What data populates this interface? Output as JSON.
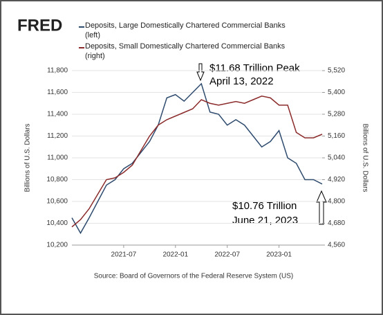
{
  "logo": "FRED",
  "chart_data": {
    "type": "line",
    "annotations": [
      "$11.68 Trillion Peak",
      "April 13, 2022",
      "$10.76 Trillion",
      "June 21, 2023"
    ],
    "ylabel": "Billions of U.S. Dollars",
    "y2label": "Billions of U.S. Dollars",
    "source": "Source: Board of Governors of the Federal Reserve System (US)",
    "x": [
      "2021-01",
      "2021-02",
      "2021-03",
      "2021-04",
      "2021-05",
      "2021-06",
      "2021-07",
      "2021-08",
      "2021-09",
      "2021-10",
      "2021-11",
      "2021-12",
      "2022-01",
      "2022-02",
      "2022-03",
      "2022-04",
      "2022-05",
      "2022-06",
      "2022-07",
      "2022-08",
      "2022-09",
      "2022-10",
      "2022-11",
      "2022-12",
      "2023-01",
      "2023-02",
      "2023-03",
      "2023-04",
      "2023-05",
      "2023-06"
    ],
    "xlim": [
      "2021-01",
      "2023-06"
    ],
    "xticks": [
      "2021-07",
      "2022-01",
      "2022-07",
      "2023-01"
    ],
    "ylim": [
      10200,
      11800
    ],
    "yticks": [
      {
        "value": 10200,
        "label": "10,200"
      },
      {
        "value": 10400,
        "label": "10,400"
      },
      {
        "value": 10600,
        "label": "10,600"
      },
      {
        "value": 10800,
        "label": "10,800"
      },
      {
        "value": 11000,
        "label": "11,000"
      },
      {
        "value": 11200,
        "label": "11,200"
      },
      {
        "value": 11400,
        "label": "11,400"
      },
      {
        "value": 11600,
        "label": "11,600"
      },
      {
        "value": 11800,
        "label": "11,800"
      }
    ],
    "y2lim": [
      4560,
      5520
    ],
    "y2ticks": [
      {
        "value": 4560,
        "label": "4,560"
      },
      {
        "value": 4680,
        "label": "4,680"
      },
      {
        "value": 4800,
        "label": "4,800"
      },
      {
        "value": 4920,
        "label": "4,920"
      },
      {
        "value": 5040,
        "label": "5,040"
      },
      {
        "value": 5160,
        "label": "5,160"
      },
      {
        "value": 5280,
        "label": "5,280"
      },
      {
        "value": 5400,
        "label": "5,400"
      },
      {
        "value": 5520,
        "label": "5,520"
      }
    ],
    "grid": true,
    "series": [
      {
        "name": "Deposits, Large Domestically Chartered Commercial Banks (left)",
        "color": "#2f4b6e",
        "axis": "y",
        "values": [
          10450,
          10310,
          10450,
          10600,
          10750,
          10800,
          10900,
          10950,
          11050,
          11150,
          11300,
          11550,
          11580,
          11520,
          11600,
          11680,
          11420,
          11400,
          11300,
          11350,
          11300,
          11200,
          11100,
          11150,
          11250,
          11000,
          10950,
          10800,
          10800,
          10760
        ]
      },
      {
        "name": "Deposits, Small Domestically Chartered Commercial Banks (right)",
        "color": "#8b2a2a",
        "axis": "y2",
        "values": [
          4660,
          4700,
          4760,
          4840,
          4920,
          4930,
          4960,
          5000,
          5080,
          5160,
          5220,
          5250,
          5270,
          5290,
          5310,
          5360,
          5340,
          5330,
          5340,
          5350,
          5340,
          5360,
          5380,
          5370,
          5330,
          5330,
          5180,
          5150,
          5150,
          5170
        ]
      }
    ]
  }
}
